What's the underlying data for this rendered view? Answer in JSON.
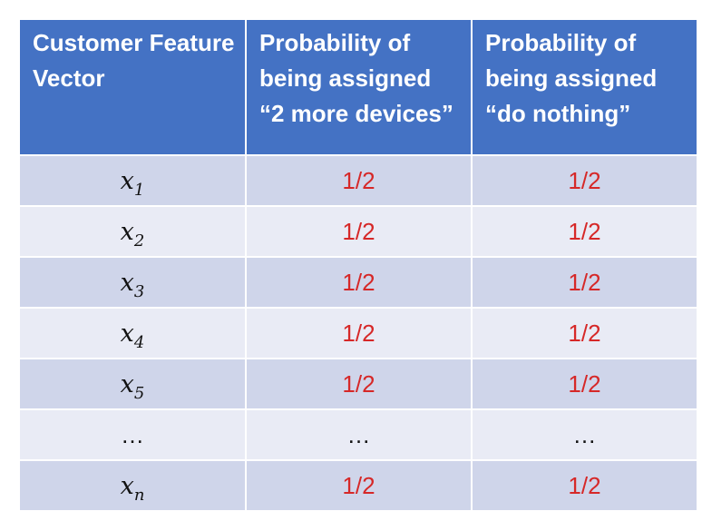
{
  "headers": [
    "Customer Feature Vector",
    "Probability of being assigned “2 more devices”",
    "Probability of being assigned “do nothing”"
  ],
  "rows": [
    {
      "var": "x",
      "sub": "1",
      "p1": "1/2",
      "p2": "1/2"
    },
    {
      "var": "x",
      "sub": "2",
      "p1": "1/2",
      "p2": "1/2"
    },
    {
      "var": "x",
      "sub": "3",
      "p1": "1/2",
      "p2": "1/2"
    },
    {
      "var": "x",
      "sub": "4",
      "p1": "1/2",
      "p2": "1/2"
    },
    {
      "var": "x",
      "sub": "5",
      "p1": "1/2",
      "p2": "1/2"
    },
    {
      "var": "…",
      "sub": "",
      "p1": "…",
      "p2": "…"
    },
    {
      "var": "x",
      "sub": "n",
      "p1": "1/2",
      "p2": "1/2"
    }
  ],
  "colors": {
    "header_bg": "#4472c4",
    "row_dark": "#cfd5ea",
    "row_light": "#e9ebf5",
    "probability_text": "#d62828"
  }
}
